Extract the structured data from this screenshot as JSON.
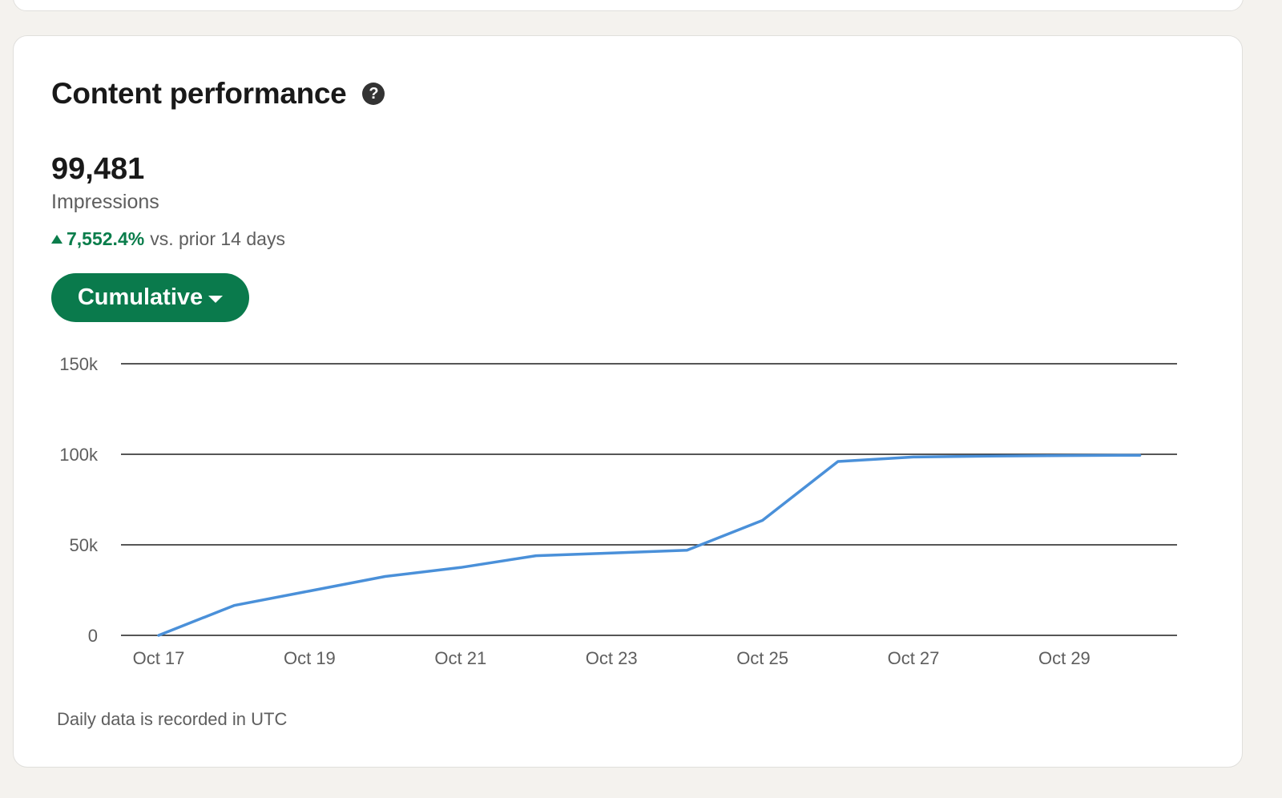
{
  "card": {
    "title": "Content performance",
    "help_icon_glyph": "?"
  },
  "metric": {
    "value": "99,481",
    "label": "Impressions",
    "change_pct": "7,552.4%",
    "change_suffix": "vs. prior 14 days",
    "change_direction": "up"
  },
  "mode_button": {
    "label": "Cumulative"
  },
  "footnote": "Daily data is recorded in UTC",
  "colors": {
    "accent_green": "#0a7a4c",
    "positive_text": "#0a7d4b",
    "line": "#4a90d9",
    "gridline": "#1f1f1f"
  },
  "chart_data": {
    "type": "line",
    "title": "",
    "xlabel": "",
    "ylabel": "",
    "ylim": [
      0,
      150000
    ],
    "yticks": [
      0,
      50000,
      100000,
      150000
    ],
    "ytick_labels": [
      "0",
      "50k",
      "100k",
      "150k"
    ],
    "x": [
      "Oct 17",
      "Oct 18",
      "Oct 19",
      "Oct 20",
      "Oct 21",
      "Oct 22",
      "Oct 23",
      "Oct 24",
      "Oct 25",
      "Oct 26",
      "Oct 27",
      "Oct 28",
      "Oct 29",
      "Oct 30"
    ],
    "xtick_labels": [
      "Oct 17",
      "Oct 19",
      "Oct 21",
      "Oct 23",
      "Oct 25",
      "Oct 27",
      "Oct 29"
    ],
    "series": [
      {
        "values": [
          0,
          16500,
          24500,
          32500,
          37500,
          44000,
          45500,
          47000,
          63500,
          96000,
          98500,
          99000,
          99300,
          99481
        ]
      }
    ],
    "grid": true,
    "legend": "none"
  }
}
